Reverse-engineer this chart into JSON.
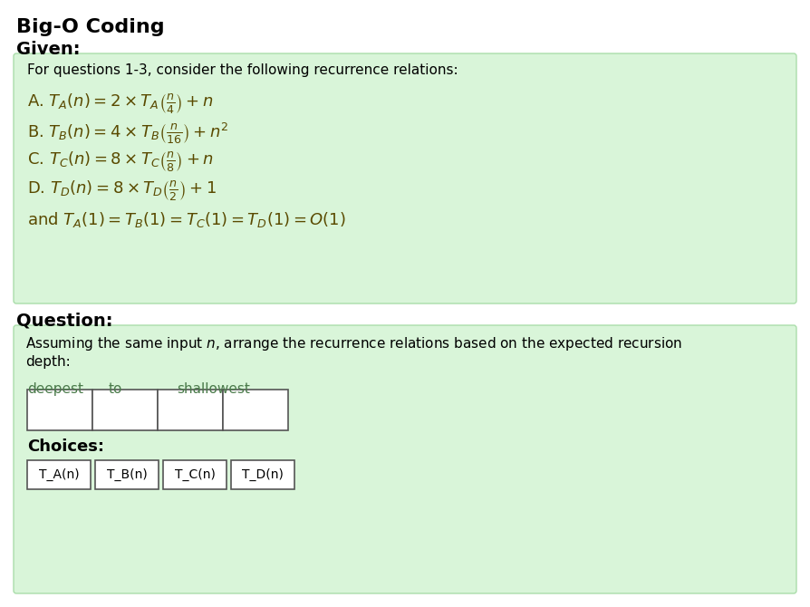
{
  "title": "Big-O Coding",
  "given_label": "Given:",
  "question_label": "Question:",
  "given_box_color": "#d9f5d9",
  "question_box_color": "#d9f5d9",
  "given_border_color": "#aaddaa",
  "question_border_color": "#aaddaa",
  "bg_color": "#ffffff",
  "text_color": "#000000",
  "math_color": "#5a4a00",
  "green_text_color": "#4a7a4a",
  "intro_text": "For questions 1-3, consider the following recurrence relations:",
  "recurrences": [
    "A. $T_A(n) = 2 \\times T_A\\left(\\frac{n}{4}\\right) + n$",
    "B. $T_B(n) = 4 \\times T_B\\left(\\frac{n}{16}\\right) + n^2$",
    "C. $T_C(n) = 8 \\times T_C\\left(\\frac{n}{8}\\right) + n$",
    "D. $T_D(n) = 8 \\times T_D\\left(\\frac{n}{2}\\right) + 1$"
  ],
  "base_case": "and $T_A(1) = T_B(1) = T_C(1) = T_D(1) = O(1)$",
  "question_text_line1": "Assuming the same input $n$, arrange the recurrence relations based on the expected recursion",
  "question_text_line2": "depth:",
  "deepest_label": "deepest",
  "to_label": "to",
  "shallowest_label": "shallowest",
  "choices_label": "Choices:",
  "choices": [
    "T_A(n)",
    "T_B(n)",
    "T_C(n)",
    "T_D(n)"
  ]
}
